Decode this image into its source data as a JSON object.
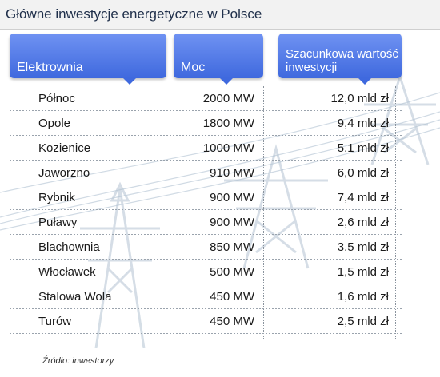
{
  "title": "Główne inwestycje energetyczne w Polsce",
  "headers": {
    "plant": "Elektrownia",
    "power": "Moc",
    "value": "Szacunkowa wartość\ninwestycji"
  },
  "rows": [
    {
      "plant": "Północ",
      "power": "2000 MW",
      "value": "12,0 mld zł"
    },
    {
      "plant": "Opole",
      "power": "1800 MW",
      "value": "9,4 mld zł"
    },
    {
      "plant": "Kozienice",
      "power": "1000 MW",
      "value": "5,1 mld zł"
    },
    {
      "plant": "Jaworzno",
      "power": "910 MW",
      "value": "6,0 mld zł"
    },
    {
      "plant": "Rybnik",
      "power": "900 MW",
      "value": "7,4 mld zł"
    },
    {
      "plant": "Puławy",
      "power": "900 MW",
      "value": "2,6 mld zł"
    },
    {
      "plant": "Blachownia",
      "power": "850 MW",
      "value": "3,5 mld zł"
    },
    {
      "plant": "Włocławek",
      "power": "500 MW",
      "value": "1,5 mld zł"
    },
    {
      "plant": "Stalowa Wola",
      "power": "450 MW",
      "value": "1,6 mld zł"
    },
    {
      "plant": "Turów",
      "power": "450 MW",
      "value": "2,5 mld zł"
    }
  ],
  "source": "Źródło: inwestorzy",
  "colors": {
    "header": "#4a74e4",
    "title": "#1f2f4a",
    "watermark": "#b9c8d6"
  },
  "icons": [
    "pylon-icon",
    "pylon-icon",
    "pylon-icon"
  ]
}
